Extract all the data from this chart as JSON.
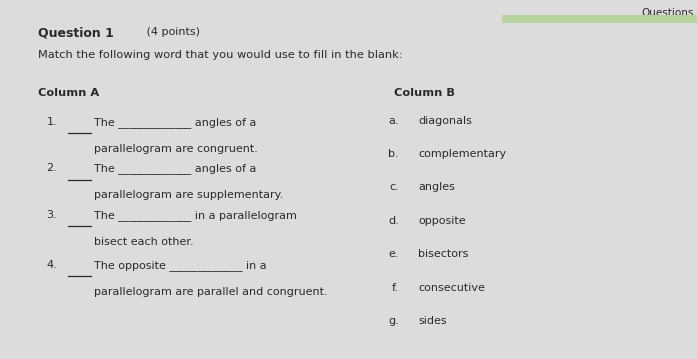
{
  "bg_color": "#dcdcdc",
  "title": "Question 1",
  "title_points": " (4 points)",
  "subtitle": "Match the following word that you would use to fill in the blank:",
  "col_a_header": "Column A",
  "col_b_header": "Column B",
  "col_a_items": [
    {
      "num": "1.",
      "line1": "The _____________ angles of a",
      "line2": "parallelogram are congruent."
    },
    {
      "num": "2.",
      "line1": "The _____________ angles of a",
      "line2": "parallelogram are supplementary."
    },
    {
      "num": "3.",
      "line1": "The _____________ in a parallelogram",
      "line2": "bisect each other."
    },
    {
      "num": "4.",
      "line1": "The opposite _____________ in a",
      "line2": "parallelogram are parallel and congruent."
    }
  ],
  "col_b_items": [
    {
      "letter": "a.",
      "word": "diagonals"
    },
    {
      "letter": "b.",
      "word": "complementary"
    },
    {
      "letter": "c.",
      "word": "angles"
    },
    {
      "letter": "d.",
      "word": "opposite"
    },
    {
      "letter": "e.",
      "word": "bisectors"
    },
    {
      "letter": "f.",
      "word": "consecutive"
    },
    {
      "letter": "g.",
      "word": "sides"
    }
  ],
  "accent_color": "#b8d4a0",
  "text_color": "#2a2a2a",
  "questions_label": "Questions"
}
